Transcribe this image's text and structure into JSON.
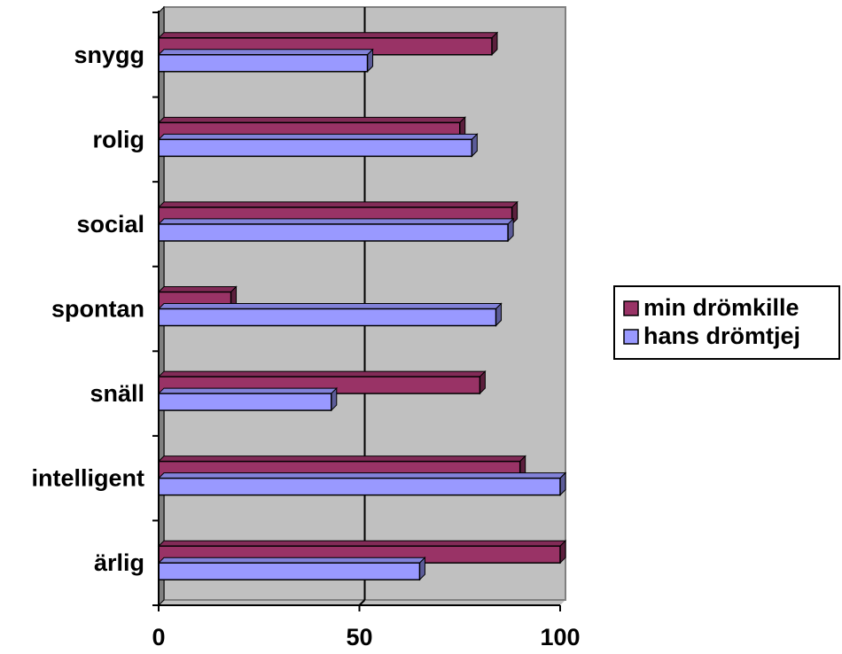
{
  "chart_data": {
    "type": "bar",
    "orientation": "horizontal",
    "style": "3d",
    "categories": [
      "snygg",
      "rolig",
      "social",
      "spontan",
      "snäll",
      "intelligent",
      "ärlig"
    ],
    "series": [
      {
        "name": "min drömkille",
        "color": "#993366",
        "values": [
          83,
          75,
          88,
          18,
          80,
          90,
          100
        ]
      },
      {
        "name": "hans drömtjej",
        "color": "#9999ff",
        "values": [
          52,
          78,
          87,
          84,
          43,
          100,
          65
        ]
      }
    ],
    "xlim": [
      0,
      100
    ],
    "xticks": [
      "0",
      "50",
      "100"
    ],
    "grid": "vertical at 50",
    "plot_background": "#c0c0c0",
    "legend_position": "right"
  }
}
